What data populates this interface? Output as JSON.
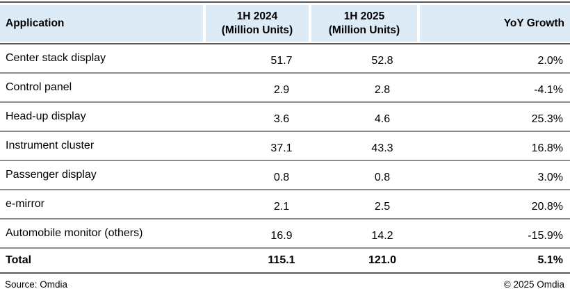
{
  "header": {
    "col1": "Application",
    "col2_line1": "1H 2024",
    "col2_line2": "(Million Units)",
    "col3_line1": "1H 2025",
    "col3_line2": "(Million Units)",
    "col4": "YoY Growth"
  },
  "rows": [
    {
      "application": "Center stack display",
      "h1_2024": "51.7",
      "h1_2025": "52.8",
      "yoy": "2.0%"
    },
    {
      "application": "Control panel",
      "h1_2024": "2.9",
      "h1_2025": "2.8",
      "yoy": "-4.1%"
    },
    {
      "application": "Head-up display",
      "h1_2024": "3.6",
      "h1_2025": "4.6",
      "yoy": "25.3%"
    },
    {
      "application": "Instrument cluster",
      "h1_2024": "37.1",
      "h1_2025": "43.3",
      "yoy": "16.8%"
    },
    {
      "application": "Passenger display",
      "h1_2024": "0.8",
      "h1_2025": "0.8",
      "yoy": "3.0%"
    },
    {
      "application": "e-mirror",
      "h1_2024": "2.1",
      "h1_2025": "2.5",
      "yoy": "20.8%"
    },
    {
      "application": "Automobile monitor (others)",
      "h1_2024": "16.9",
      "h1_2025": "14.2",
      "yoy": "-15.9%"
    }
  ],
  "total": {
    "label": "Total",
    "h1_2024": "115.1",
    "h1_2025": "121.0",
    "yoy": "5.1%"
  },
  "footer": {
    "source": "Source: Omdia",
    "copyright": "© 2025 Omdia"
  },
  "colors": {
    "header_bg": "#DDEBF7",
    "major_line": "#595959",
    "row_line": "#8C8C8C",
    "text": "#000000"
  },
  "chart_data": {
    "type": "table",
    "columns": [
      "Application",
      "1H 2024 (Million Units)",
      "1H 2025 (Million Units)",
      "YoY Growth"
    ],
    "rows": [
      [
        "Center stack display",
        51.7,
        52.8,
        "2.0%"
      ],
      [
        "Control panel",
        2.9,
        2.8,
        "-4.1%"
      ],
      [
        "Head-up display",
        3.6,
        4.6,
        "25.3%"
      ],
      [
        "Instrument cluster",
        37.1,
        43.3,
        "16.8%"
      ],
      [
        "Passenger display",
        0.8,
        0.8,
        "3.0%"
      ],
      [
        "e-mirror",
        2.1,
        2.5,
        "20.8%"
      ],
      [
        "Automobile monitor (others)",
        16.9,
        14.2,
        "-15.9%"
      ]
    ],
    "total_row": [
      "Total",
      115.1,
      121.0,
      "5.1%"
    ],
    "source": "Source: Omdia",
    "copyright": "© 2025 Omdia"
  }
}
